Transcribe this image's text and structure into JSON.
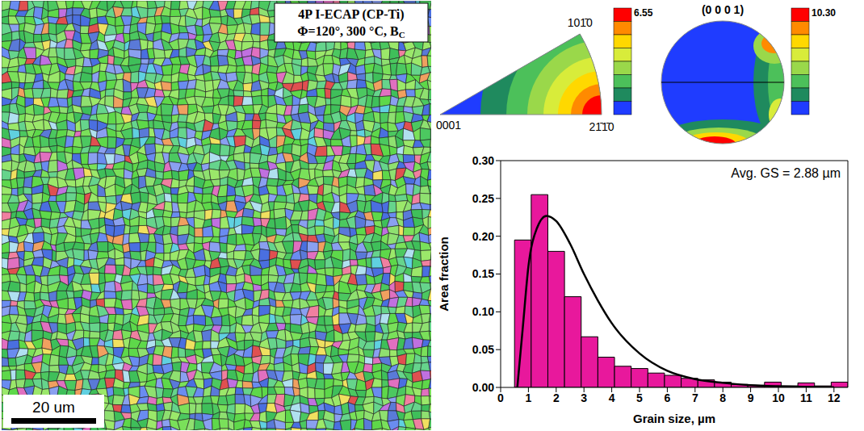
{
  "ebsd_map": {
    "label_lines": [
      {
        "text": "4P I-ECAP (CP-Ti)"
      },
      {
        "text": "Φ=120°, 300 °C, B",
        "subscript": "C"
      }
    ],
    "scale_bar": {
      "label": "20 um",
      "length_um": 20
    }
  },
  "inverse_pole_figure": {
    "corners": {
      "left": "0001",
      "right": "21̄1̄0",
      "top": "101̄0"
    },
    "colorbar": {
      "max": 6.55,
      "colors": [
        "#ff0000",
        "#ff8a00",
        "#ffd800",
        "#d8ec3a",
        "#9ad84a",
        "#4cc05a",
        "#1f8a5e",
        "#1f3cff"
      ]
    }
  },
  "pole_figure": {
    "title": "(0 0 0 1)",
    "colorbar": {
      "max": {
        "value": 10.3,
        "label": "10.30"
      },
      "colors": [
        "#ff0000",
        "#ff8a00",
        "#ffd800",
        "#d8ec3a",
        "#9ad84a",
        "#4cc05a",
        "#1f8a5e",
        "#1f3cff"
      ]
    }
  },
  "chart_data": {
    "type": "histogram",
    "xlabel": "Grain size, µm",
    "ylabel": "Area fraction",
    "annotation": "Avg. GS = 2.88 µm",
    "bins": [
      0.5,
      1.1,
      1.7,
      2.3,
      2.9,
      3.5,
      4.1,
      4.7,
      5.3,
      5.9,
      6.5,
      7.1,
      7.7,
      8.3,
      8.9,
      9.5,
      10.1,
      10.7,
      11.3,
      11.9,
      12.5
    ],
    "values": [
      0.195,
      0.255,
      0.18,
      0.12,
      0.067,
      0.04,
      0.028,
      0.025,
      0.019,
      0.016,
      0.012,
      0.01,
      0.007,
      0.004,
      0.003,
      0.007,
      0.002,
      0.006,
      0.002,
      0.007
    ],
    "color": "#e8189c",
    "fit_curve": {
      "x": [
        0.6,
        0.8,
        1.0,
        1.3,
        1.65,
        2.0,
        2.5,
        3.0,
        3.5,
        4.0,
        5.0,
        6.0,
        7.0,
        8.0,
        9.0,
        10.0,
        12.0
      ],
      "y": [
        0,
        0.08,
        0.16,
        0.21,
        0.227,
        0.22,
        0.19,
        0.15,
        0.115,
        0.085,
        0.045,
        0.022,
        0.011,
        0.006,
        0.003,
        0.0015,
        0.0003
      ]
    },
    "xlim": [
      0,
      12.5
    ],
    "ylim": [
      0,
      0.3
    ],
    "xticks": [
      0,
      1,
      2,
      3,
      4,
      5,
      6,
      7,
      8,
      9,
      10,
      11,
      12
    ],
    "yticks": [
      {
        "value": 0,
        "label": "0.00"
      },
      {
        "value": 0.05,
        "label": "0.05"
      },
      {
        "value": 0.1,
        "label": "0.10"
      },
      {
        "value": 0.15,
        "label": "0.15"
      },
      {
        "value": 0.2,
        "label": "0.20"
      },
      {
        "value": 0.25,
        "label": "0.25"
      },
      {
        "value": 0.3,
        "label": "0.30"
      }
    ],
    "grid": false
  }
}
